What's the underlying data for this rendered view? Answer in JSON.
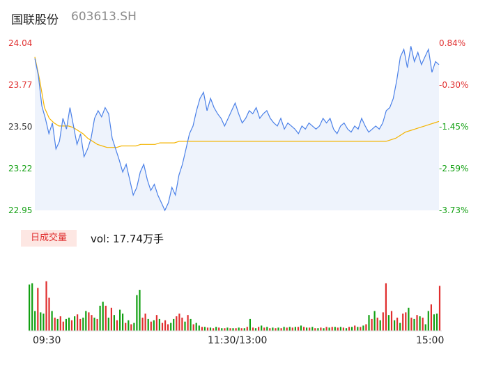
{
  "header": {
    "name": "国联股份",
    "code": "603613.SH"
  },
  "price_axis": {
    "left_labels": [
      "24.04",
      "23.77",
      "23.50",
      "23.22",
      "22.95"
    ],
    "right_labels": [
      "0.84%",
      "-0.30%",
      "-1.45%",
      "-2.59%",
      "-3.73%"
    ]
  },
  "volume": {
    "tab_label": "日成交量",
    "text": "vol: 17.74万手"
  },
  "time_axis": {
    "open": "09:30",
    "mid": "11:30/13:00",
    "close": "15:00"
  },
  "colors": {
    "price_line": "#4a80e8",
    "avg_line": "#f4b400",
    "up": "#e02e2e",
    "down": "#12a012"
  },
  "chart_data": [
    {
      "type": "line",
      "title": "",
      "ylim": [
        22.95,
        24.04
      ],
      "series": [
        {
          "values": [
            23.94,
            23.83,
            23.63,
            23.55,
            23.45,
            23.52,
            23.35,
            23.4,
            23.55,
            23.48,
            23.62,
            23.5,
            23.38,
            23.45,
            23.3,
            23.35,
            23.42,
            23.55,
            23.6,
            23.56,
            23.62,
            23.58,
            23.42,
            23.35,
            23.28,
            23.2,
            23.25,
            23.15,
            23.05,
            23.1,
            23.2,
            23.25,
            23.15,
            23.08,
            23.12,
            23.05,
            23.0,
            22.95,
            23.0,
            23.1,
            23.05,
            23.18,
            23.25,
            23.35,
            23.45,
            23.5,
            23.6,
            23.68,
            23.72,
            23.6,
            23.68,
            23.62,
            23.58,
            23.55,
            23.5,
            23.55,
            23.6,
            23.65,
            23.58,
            23.52,
            23.55,
            23.6,
            23.58,
            23.62,
            23.55,
            23.58,
            23.6,
            23.55,
            23.52,
            23.5,
            23.55,
            23.48,
            23.52,
            23.5,
            23.48,
            23.45,
            23.5,
            23.48,
            23.52,
            23.5,
            23.48,
            23.5,
            23.55,
            23.52,
            23.55,
            23.48,
            23.45,
            23.5,
            23.52,
            23.48,
            23.46,
            23.5,
            23.48,
            23.55,
            23.5,
            23.46,
            23.48,
            23.5,
            23.48,
            23.52,
            23.6,
            23.62,
            23.68,
            23.8,
            23.95,
            24.0,
            23.88,
            24.02,
            23.92,
            23.98,
            23.9,
            23.95,
            24.0,
            23.85,
            23.92,
            23.9
          ],
          "color": "#4a80e8"
        },
        {
          "values": [
            23.95,
            23.8,
            23.62,
            23.55,
            23.52,
            23.5,
            23.5,
            23.5,
            23.49,
            23.47,
            23.45,
            23.42,
            23.4,
            23.38,
            23.37,
            23.36,
            23.36,
            23.36,
            23.37,
            23.37,
            23.37,
            23.37,
            23.38,
            23.38,
            23.38,
            23.38,
            23.39,
            23.39,
            23.39,
            23.39,
            23.4,
            23.4,
            23.4,
            23.4,
            23.4,
            23.4,
            23.4,
            23.4,
            23.4,
            23.4,
            23.4,
            23.4,
            23.4,
            23.4,
            23.4,
            23.4,
            23.4,
            23.4,
            23.4,
            23.4,
            23.4,
            23.4,
            23.4,
            23.4,
            23.4,
            23.4,
            23.4,
            23.4,
            23.4,
            23.4,
            23.4,
            23.4,
            23.4,
            23.4,
            23.4,
            23.4,
            23.4,
            23.4,
            23.4,
            23.4,
            23.4,
            23.4,
            23.4,
            23.4,
            23.41,
            23.42,
            23.44,
            23.46,
            23.47,
            23.48,
            23.49,
            23.5,
            23.51,
            23.52,
            23.53
          ],
          "color": "#f4b400"
        }
      ]
    },
    {
      "type": "bar",
      "title": "",
      "values": [
        0.7,
        0.72,
        0.3,
        0.65,
        0.28,
        0.26,
        0.75,
        0.5,
        0.3,
        0.2,
        0.18,
        0.22,
        0.14,
        0.18,
        0.2,
        0.16,
        0.22,
        0.25,
        0.18,
        0.2,
        0.3,
        0.28,
        0.24,
        0.2,
        0.18,
        0.38,
        0.44,
        0.38,
        0.2,
        0.35,
        0.24,
        0.16,
        0.32,
        0.26,
        0.12,
        0.16,
        0.1,
        0.12,
        0.54,
        0.62,
        0.2,
        0.26,
        0.18,
        0.14,
        0.16,
        0.24,
        0.18,
        0.12,
        0.16,
        0.1,
        0.12,
        0.18,
        0.22,
        0.26,
        0.2,
        0.14,
        0.24,
        0.18,
        0.1,
        0.12,
        0.08,
        0.06,
        0.06,
        0.05,
        0.05,
        0.04,
        0.06,
        0.05,
        0.04,
        0.04,
        0.05,
        0.04,
        0.04,
        0.04,
        0.05,
        0.04,
        0.04,
        0.06,
        0.18,
        0.05,
        0.04,
        0.06,
        0.08,
        0.05,
        0.06,
        0.04,
        0.05,
        0.04,
        0.05,
        0.04,
        0.06,
        0.05,
        0.06,
        0.05,
        0.06,
        0.06,
        0.08,
        0.06,
        0.05,
        0.05,
        0.06,
        0.04,
        0.04,
        0.05,
        0.04,
        0.06,
        0.05,
        0.06,
        0.06,
        0.05,
        0.06,
        0.05,
        0.04,
        0.06,
        0.06,
        0.08,
        0.06,
        0.06,
        0.08,
        0.1,
        0.24,
        0.18,
        0.3,
        0.2,
        0.16,
        0.28,
        0.72,
        0.24,
        0.3,
        0.16,
        0.2,
        0.12,
        0.26,
        0.28,
        0.35,
        0.2,
        0.18,
        0.24,
        0.22,
        0.2,
        0.1,
        0.3,
        0.4,
        0.25,
        0.26,
        0.68
      ],
      "colors": [
        "#12a012",
        "#12a012",
        "#12a012",
        "#e02e2e",
        "#12a012",
        "#12a012",
        "#e02e2e",
        "#e02e2e",
        "#12a012",
        "#e02e2e",
        "#12a012",
        "#e02e2e",
        "#e02e2e",
        "#12a012",
        "#12a012",
        "#e02e2e",
        "#12a012",
        "#e02e2e",
        "#e02e2e",
        "#12a012",
        "#12a012",
        "#e02e2e",
        "#e02e2e",
        "#12a012",
        "#e02e2e",
        "#12a012",
        "#12a012",
        "#e02e2e",
        "#12a012",
        "#e02e2e",
        "#12a012",
        "#e02e2e",
        "#12a012",
        "#12a012",
        "#e02e2e",
        "#12a012",
        "#e02e2e",
        "#12a012",
        "#12a012",
        "#12a012",
        "#e02e2e",
        "#e02e2e",
        "#12a012",
        "#e02e2e",
        "#12a012",
        "#e02e2e",
        "#12a012",
        "#e02e2e",
        "#e02e2e",
        "#e02e2e",
        "#12a012",
        "#12a012",
        "#e02e2e",
        "#e02e2e",
        "#e02e2e",
        "#12a012",
        "#e02e2e",
        "#12a012",
        "#e02e2e",
        "#12a012",
        "#12a012",
        "#e02e2e",
        "#12a012",
        "#e02e2e",
        "#12a012",
        "#e02e2e",
        "#12a012",
        "#e02e2e",
        "#12a012",
        "#e02e2e",
        "#12a012",
        "#e02e2e",
        "#12a012",
        "#e02e2e",
        "#12a012",
        "#e02e2e",
        "#12a012",
        "#e02e2e",
        "#12a012",
        "#e02e2e",
        "#12a012",
        "#e02e2e",
        "#12a012",
        "#e02e2e",
        "#12a012",
        "#e02e2e",
        "#12a012",
        "#e02e2e",
        "#12a012",
        "#e02e2e",
        "#12a012",
        "#e02e2e",
        "#12a012",
        "#e02e2e",
        "#12a012",
        "#e02e2e",
        "#12a012",
        "#e02e2e",
        "#12a012",
        "#e02e2e",
        "#12a012",
        "#e02e2e",
        "#12a012",
        "#e02e2e",
        "#12a012",
        "#e02e2e",
        "#12a012",
        "#e02e2e",
        "#12a012",
        "#e02e2e",
        "#12a012",
        "#e02e2e",
        "#12a012",
        "#e02e2e",
        "#12a012",
        "#e02e2e",
        "#12a012",
        "#e02e2e",
        "#12a012",
        "#e02e2e",
        "#12a012",
        "#e02e2e",
        "#12a012",
        "#e02e2e",
        "#12a012",
        "#e02e2e",
        "#e02e2e",
        "#12a012",
        "#e02e2e",
        "#12a012",
        "#e02e2e",
        "#12a012",
        "#e02e2e",
        "#e02e2e",
        "#12a012",
        "#e02e2e",
        "#12a012",
        "#e02e2e",
        "#12a012",
        "#e02e2e",
        "#12a012",
        "#12a012",
        "#e02e2e",
        "#12a012",
        "#12a012",
        "#e02e2e"
      ]
    }
  ]
}
